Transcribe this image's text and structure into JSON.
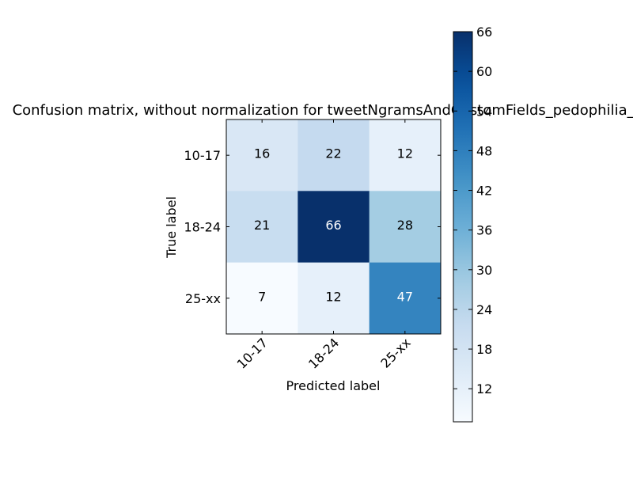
{
  "chart_data": {
    "type": "heatmap",
    "title": "Confusion matrix, without normalization for tweetNgramsAndCustomFields_pedophilia_un",
    "xlabel": "Predicted label",
    "ylabel": "True label",
    "x_categories": [
      "10-17",
      "18-24",
      "25-xx"
    ],
    "y_categories": [
      "10-17",
      "18-24",
      "25-xx"
    ],
    "values": [
      [
        16,
        22,
        12
      ],
      [
        21,
        66,
        28
      ],
      [
        7,
        12,
        47
      ]
    ],
    "colormap": "Blues",
    "value_range": [
      7,
      66
    ],
    "colorbar": {
      "ticks": [
        12,
        18,
        24,
        30,
        36,
        42,
        48,
        54,
        60,
        66
      ],
      "position": "right"
    },
    "grid": false
  }
}
